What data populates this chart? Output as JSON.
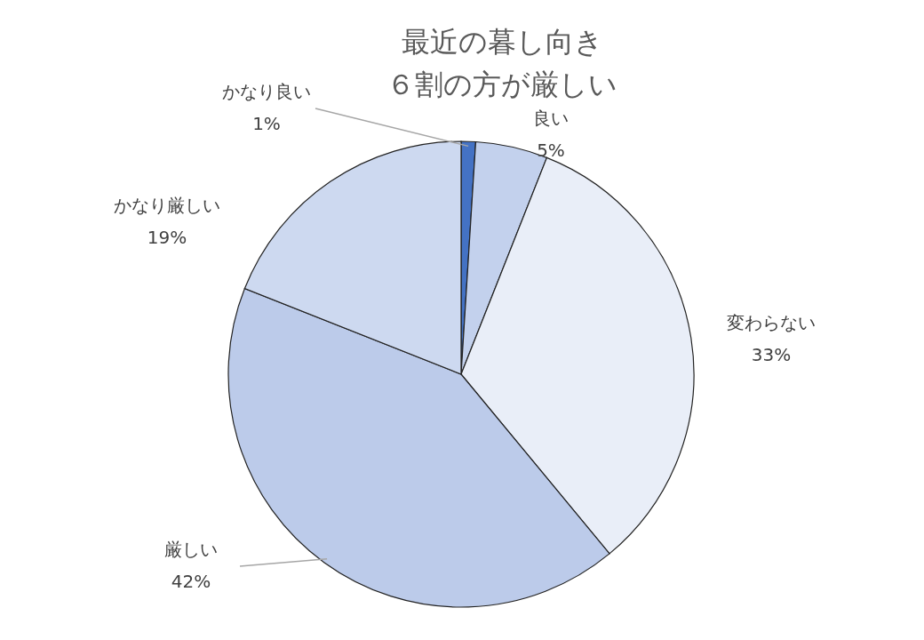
{
  "chart_data": {
    "type": "pie",
    "title": "最近の暮し向き",
    "subtitle": "６割の方が厳しい",
    "categories": [
      "かなり良い",
      "良い",
      "変わらない",
      "厳しい",
      "かなり厳しい"
    ],
    "values": [
      1,
      5,
      33,
      42,
      19
    ],
    "value_labels": [
      "1%",
      "5%",
      "33%",
      "42%",
      "19%"
    ],
    "colors": [
      "#4472c4",
      "#c3d1ed",
      "#e9eef8",
      "#bccbea",
      "#cdd9f0"
    ]
  }
}
